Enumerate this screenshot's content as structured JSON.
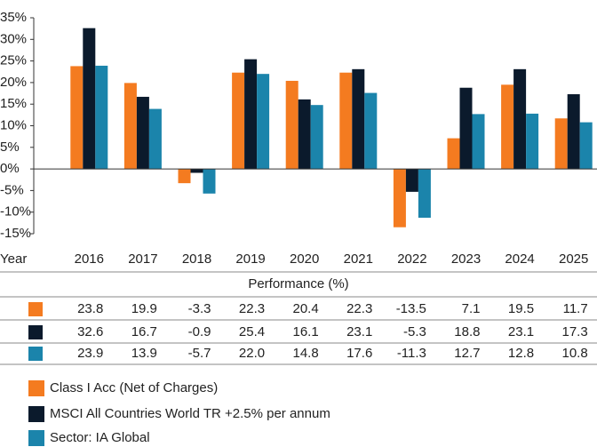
{
  "chart_data": {
    "type": "bar",
    "xlabel": "Year",
    "table_title": "Performance (%)",
    "categories": [
      "2016",
      "2017",
      "2018",
      "2019",
      "2020",
      "2021",
      "2022",
      "2023",
      "2024",
      "2025"
    ],
    "series": [
      {
        "name": "Class I Acc (Net of Charges)",
        "color": "#f47b20",
        "values": [
          23.8,
          19.9,
          -3.3,
          22.3,
          20.4,
          22.3,
          -13.5,
          7.1,
          19.5,
          11.7
        ]
      },
      {
        "name": "MSCI All Countries World TR +2.5% per annum",
        "color": "#0b1a2c",
        "values": [
          32.6,
          16.7,
          -0.9,
          25.4,
          16.1,
          23.1,
          -5.3,
          18.8,
          23.1,
          17.3
        ]
      },
      {
        "name": "Sector: IA Global",
        "color": "#1b84ab",
        "values": [
          23.9,
          13.9,
          -5.7,
          22,
          14.8,
          17.6,
          -11.3,
          12.7,
          12.8,
          10.8
        ],
        "value_labels": [
          "23.9",
          "13.9",
          "-5.7",
          "22.0",
          "14.8",
          "17.6",
          "-11.3",
          "12.7",
          "12.8",
          "10.8"
        ]
      }
    ],
    "ylim": [
      -15,
      35
    ],
    "yticks": [
      {
        "value": 35,
        "label": "35%"
      },
      {
        "value": 30,
        "label": "30%"
      },
      {
        "value": 25,
        "label": "25%"
      },
      {
        "value": 20,
        "label": "20%"
      },
      {
        "value": 15,
        "label": "15%"
      },
      {
        "value": 10,
        "label": "10%"
      },
      {
        "value": 5,
        "label": "5%"
      },
      {
        "value": 0,
        "label": "0%"
      },
      {
        "value": -5,
        "label": "-5%"
      },
      {
        "value": -10,
        "label": "-10%"
      },
      {
        "value": -15,
        "label": "-15%"
      }
    ],
    "grid": false
  }
}
